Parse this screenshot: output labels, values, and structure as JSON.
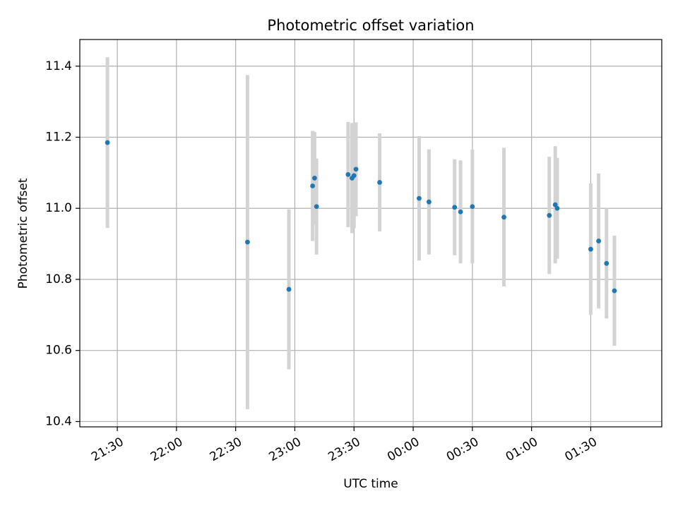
{
  "chart_data": {
    "type": "scatter",
    "title": "Photometric offset variation",
    "xlabel": "UTC time",
    "ylabel": "Photometric offset",
    "grid": true,
    "legend": "none",
    "x_axis": {
      "type": "time",
      "start": "21:11",
      "end": "02:06",
      "day_rollover_after": "24:00"
    },
    "ylim": [
      10.385,
      11.475
    ],
    "x_ticks": [
      "21:30",
      "22:00",
      "22:30",
      "23:00",
      "23:30",
      "00:00",
      "00:30",
      "01:00",
      "01:30"
    ],
    "y_ticks": [
      10.4,
      10.6,
      10.8,
      11.0,
      11.2,
      11.4
    ],
    "y_tick_labels": [
      "10.4",
      "10.6",
      "10.8",
      "11.0",
      "11.2",
      "11.4"
    ],
    "colors": {
      "point": "#1f77b4",
      "errorbar": "#d3d3d3",
      "grid": "#b0b0b0"
    },
    "points": [
      {
        "time": "21:25",
        "y": 11.185,
        "err": 0.24
      },
      {
        "time": "22:36",
        "y": 10.905,
        "err": 0.47
      },
      {
        "time": "22:57",
        "y": 10.772,
        "err": 0.225
      },
      {
        "time": "23:09",
        "y": 11.063,
        "err": 0.155
      },
      {
        "time": "23:10",
        "y": 11.085,
        "err": 0.13
      },
      {
        "time": "23:11",
        "y": 11.005,
        "err": 0.135
      },
      {
        "time": "23:27",
        "y": 11.095,
        "err": 0.148
      },
      {
        "time": "23:29",
        "y": 11.085,
        "err": 0.155
      },
      {
        "time": "23:30",
        "y": 11.092,
        "err": 0.148
      },
      {
        "time": "23:31",
        "y": 11.11,
        "err": 0.132
      },
      {
        "time": "23:43",
        "y": 11.073,
        "err": 0.138
      },
      {
        "time": "00:03",
        "y": 11.028,
        "err": 0.175
      },
      {
        "time": "00:08",
        "y": 11.018,
        "err": 0.148
      },
      {
        "time": "00:21",
        "y": 11.003,
        "err": 0.135
      },
      {
        "time": "00:24",
        "y": 10.99,
        "err": 0.145
      },
      {
        "time": "00:30",
        "y": 11.005,
        "err": 0.16
      },
      {
        "time": "00:46",
        "y": 10.975,
        "err": 0.195
      },
      {
        "time": "01:09",
        "y": 10.98,
        "err": 0.165
      },
      {
        "time": "01:12",
        "y": 11.01,
        "err": 0.165
      },
      {
        "time": "01:13",
        "y": 11.0,
        "err": 0.142
      },
      {
        "time": "01:30",
        "y": 10.885,
        "err": 0.185
      },
      {
        "time": "01:34",
        "y": 10.908,
        "err": 0.19
      },
      {
        "time": "01:38",
        "y": 10.845,
        "err": 0.155
      },
      {
        "time": "01:42",
        "y": 10.768,
        "err": 0.155
      }
    ]
  }
}
